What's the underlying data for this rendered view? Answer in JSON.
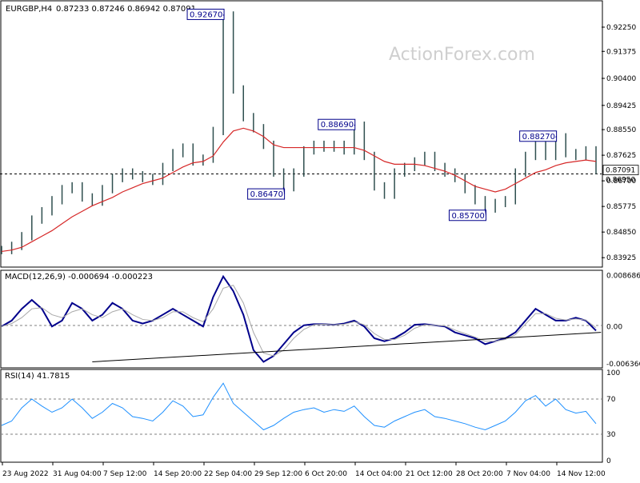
{
  "window": {
    "symbol_label": "EURGBP,H4",
    "ohlc_label": "0.87233 0.87246 0.86942 0.87091",
    "watermark": "ActionForex.com"
  },
  "colors": {
    "candles": "#2F4F4F",
    "sma": "#D62828",
    "macd": "#00008B",
    "macd_signal": "#A9A9A9",
    "rsi": "#1E90FF",
    "trendline": "#000000",
    "label_border": "#00008B",
    "label_text": "#00008B",
    "grid": "#000000"
  },
  "chart_data": [
    {
      "type": "line",
      "panel": "price",
      "title": "EURGBP,H4",
      "subtitle": "0.87233 0.87246 0.86942 0.87091",
      "x_labels": [
        "23 Aug 2022",
        "31 Aug 04:00",
        "7 Sep 12:00",
        "14 Sep 20:00",
        "22 Sep 04:00",
        "29 Sep 12:00",
        "6 Oct 20:00",
        "14 Oct 04:00",
        "21 Oct 12:00",
        "28 Oct 20:00",
        "7 Nov 04:00",
        "14 Nov 12:00"
      ],
      "ylim": [
        0.837,
        0.93
      ],
      "y_ticks": [
        "0.92250",
        "0.91375",
        "0.90400",
        "0.89425",
        "0.88550",
        "0.87625",
        "0.86700",
        "0.85775",
        "0.84850",
        "0.83925"
      ],
      "current_price_label": "0.87091",
      "hline_label": "0.86950",
      "hline_value": 0.8695,
      "x": [
        0,
        4,
        8,
        12,
        16,
        20,
        24,
        28,
        32,
        36,
        40,
        44,
        48,
        52,
        56,
        60,
        64,
        68,
        72,
        76,
        80,
        84,
        88,
        92,
        96,
        100,
        104,
        108,
        112,
        116,
        120,
        124,
        128,
        132,
        136,
        140,
        144,
        148,
        152,
        156,
        160,
        164,
        168,
        172,
        176,
        180,
        184,
        188,
        192,
        196,
        200,
        204,
        208,
        212,
        216,
        220,
        224,
        228,
        232,
        236
      ],
      "series": [
        {
          "values": [
            0.842,
            0.8435,
            0.847,
            0.853,
            0.856,
            0.86,
            0.864,
            0.865,
            0.861,
            0.8595,
            0.864,
            0.868,
            0.87,
            0.869,
            0.868,
            0.867,
            0.872,
            0.877,
            0.879,
            0.874,
            0.875,
            0.885,
            0.9267,
            0.9,
            0.89,
            0.886,
            0.88,
            0.87,
            0.8647,
            0.87,
            0.878,
            0.88,
            0.879,
            0.88,
            0.878,
            0.8869,
            0.876,
            0.865,
            0.862,
            0.87,
            0.872,
            0.874,
            0.876,
            0.872,
            0.87,
            0.868,
            0.864,
            0.86,
            0.857,
            0.859,
            0.86,
            0.87,
            0.876,
            0.88,
            0.876,
            0.8827,
            0.877,
            0.876,
            0.878,
            0.8709
          ]
        },
        {
          "name": "SMA",
          "values": [
            0.8415,
            0.842,
            0.843,
            0.845,
            0.847,
            0.849,
            0.8515,
            0.854,
            0.856,
            0.858,
            0.8595,
            0.861,
            0.863,
            0.8645,
            0.866,
            0.867,
            0.868,
            0.87,
            0.872,
            0.8735,
            0.874,
            0.876,
            0.881,
            0.885,
            0.886,
            0.885,
            0.883,
            0.88,
            0.879,
            0.879,
            0.879,
            0.879,
            0.879,
            0.879,
            0.879,
            0.879,
            0.878,
            0.876,
            0.874,
            0.873,
            0.873,
            0.873,
            0.8725,
            0.8715,
            0.8705,
            0.869,
            0.867,
            0.865,
            0.864,
            0.863,
            0.864,
            0.866,
            0.868,
            0.87,
            0.871,
            0.8725,
            0.8735,
            0.874,
            0.8745,
            0.874
          ]
        }
      ],
      "annotations": [
        {
          "text": "0.92670",
          "x": 22,
          "y": 0.9267
        },
        {
          "text": "0.86470",
          "x": 28,
          "y": 0.8647
        },
        {
          "text": "0.88690",
          "x": 35,
          "y": 0.8869
        },
        {
          "text": "0.85700",
          "x": 48,
          "y": 0.857
        },
        {
          "text": "0.88270",
          "x": 55,
          "y": 0.8827
        }
      ]
    },
    {
      "type": "line",
      "panel": "macd",
      "title": "MACD(12,26,9) -0.000694 -0.000223",
      "ylim": [
        -0.00675,
        0.009
      ],
      "y_ticks": [
        "0.008686",
        "0.00",
        "-0.006366"
      ],
      "series": [
        {
          "name": "MACD",
          "values": [
            0.0,
            0.001,
            0.003,
            0.0045,
            0.003,
            0.0,
            0.001,
            0.004,
            0.003,
            0.001,
            0.002,
            0.004,
            0.003,
            0.001,
            0.0005,
            0.001,
            0.002,
            0.003,
            0.002,
            0.001,
            0.0,
            0.005,
            0.0085,
            0.006,
            0.002,
            -0.004,
            -0.006,
            -0.005,
            -0.003,
            -0.001,
            0.0002,
            0.0004,
            0.0004,
            0.0003,
            0.0005,
            0.001,
            0.0,
            -0.002,
            -0.0025,
            -0.002,
            -0.001,
            0.0003,
            0.0004,
            0.0002,
            0.0,
            -0.001,
            -0.0015,
            -0.002,
            -0.003,
            -0.0025,
            -0.002,
            -0.001,
            0.001,
            0.003,
            0.002,
            0.001,
            0.001,
            0.0015,
            0.001,
            -0.0007
          ]
        },
        {
          "name": "Signal",
          "values": [
            0.0,
            0.0005,
            0.0015,
            0.003,
            0.0032,
            0.002,
            0.0015,
            0.0025,
            0.003,
            0.002,
            0.0015,
            0.0025,
            0.003,
            0.002,
            0.0012,
            0.001,
            0.0015,
            0.0025,
            0.0025,
            0.0015,
            0.0008,
            0.003,
            0.0065,
            0.007,
            0.004,
            -0.001,
            -0.0045,
            -0.005,
            -0.004,
            -0.002,
            -0.0005,
            0.0003,
            0.0004,
            0.0003,
            0.0004,
            0.0008,
            0.0003,
            -0.0012,
            -0.0022,
            -0.0022,
            -0.0015,
            -0.0003,
            0.0003,
            0.0002,
            0.0001,
            -0.0006,
            -0.0012,
            -0.0018,
            -0.0025,
            -0.0025,
            -0.0022,
            -0.0014,
            0.0004,
            0.0022,
            0.0022,
            0.0014,
            0.0011,
            0.0013,
            0.0011,
            -0.0002
          ]
        }
      ],
      "trendline": {
        "from": [
          36,
          -0.006
        ],
        "to": [
          238,
          -0.001
        ]
      }
    },
    {
      "type": "line",
      "panel": "rsi",
      "title": "RSI(14) 41.7815",
      "ylim": [
        0,
        100
      ],
      "y_ticks": [
        "100",
        "70",
        "30",
        "0"
      ],
      "levels": [
        70,
        30
      ],
      "series": [
        {
          "name": "RSI",
          "values": [
            40,
            45,
            60,
            70,
            62,
            55,
            60,
            70,
            60,
            48,
            55,
            65,
            60,
            50,
            48,
            45,
            55,
            68,
            62,
            50,
            52,
            72,
            88,
            65,
            55,
            45,
            35,
            40,
            48,
            55,
            58,
            60,
            55,
            58,
            56,
            62,
            50,
            40,
            38,
            45,
            50,
            55,
            58,
            50,
            48,
            45,
            42,
            38,
            35,
            40,
            45,
            55,
            68,
            74,
            62,
            70,
            58,
            54,
            56,
            42
          ]
        }
      ]
    }
  ]
}
